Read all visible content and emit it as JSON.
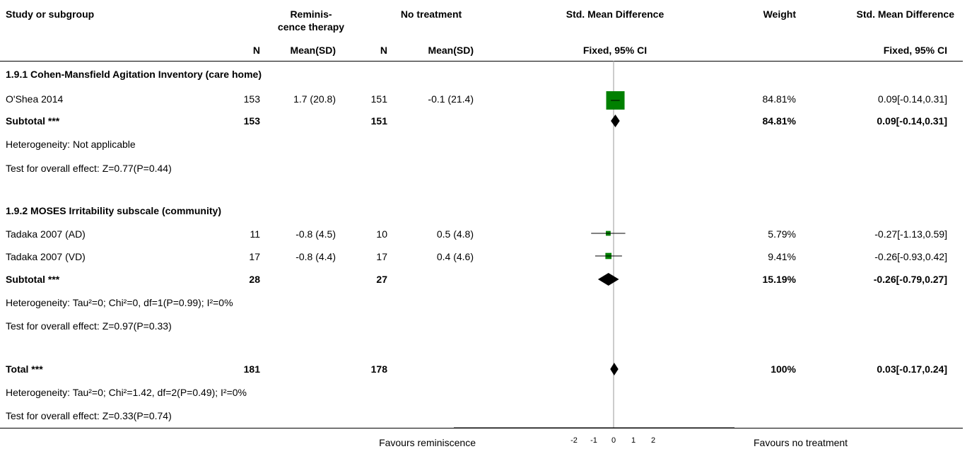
{
  "header": {
    "study": "Study or subgroup",
    "exp_group": "Reminis-",
    "exp_group2": "cence therapy",
    "ctrl_group": "No treatment",
    "smd": "Std. Mean Difference",
    "weight": "Weight",
    "smd2": "Std. Mean Difference",
    "n": "N",
    "mean_sd": "Mean(SD)",
    "method": "Fixed, 95% CI",
    "method2": "Fixed, 95% CI"
  },
  "groups": [
    {
      "title": "1.9.1 Cohen-Mansfield Agitation Inventory (care home)",
      "studies": [
        {
          "name": "O'Shea 2014",
          "n1": "153",
          "msd1": "1.7 (20.8)",
          "n2": "151",
          "msd2": "-0.1 (21.4)",
          "weight": "84.81%",
          "ci_text": "0.09[-0.14,0.31]"
        }
      ],
      "subtotal": {
        "label": "Subtotal ***",
        "n1": "153",
        "n2": "151",
        "weight": "84.81%",
        "ci_text": "0.09[-0.14,0.31]"
      },
      "heterogeneity": "Heterogeneity: Not applicable",
      "overall": "Test for overall effect: Z=0.77(P=0.44)"
    },
    {
      "title": "1.9.2 MOSES Irritability subscale (community)",
      "studies": [
        {
          "name": "Tadaka 2007 (AD)",
          "n1": "11",
          "msd1": "-0.8 (4.5)",
          "n2": "10",
          "msd2": "0.5 (4.8)",
          "weight": "5.79%",
          "ci_text": "-0.27[-1.13,0.59]"
        },
        {
          "name": "Tadaka 2007 (VD)",
          "n1": "17",
          "msd1": "-0.8 (4.4)",
          "n2": "17",
          "msd2": "0.4 (4.6)",
          "weight": "9.41%",
          "ci_text": "-0.26[-0.93,0.42]"
        }
      ],
      "subtotal": {
        "label": "Subtotal ***",
        "n1": "28",
        "n2": "27",
        "weight": "15.19%",
        "ci_text": "-0.26[-0.79,0.27]"
      },
      "heterogeneity": "Heterogeneity: Tau²=0; Chi²=0, df=1(P=0.99); I²=0%",
      "overall": "Test for overall effect: Z=0.97(P=0.33)"
    }
  ],
  "total": {
    "label": "Total ***",
    "n1": "181",
    "n2": "178",
    "weight": "100%",
    "ci_text": "0.03[-0.17,0.24]",
    "heterogeneity": "Heterogeneity: Tau²=0; Chi²=1.42, df=2(P=0.49); I²=0%",
    "overall": "Test for overall effect: Z=0.33(P=0.74)"
  },
  "footer": {
    "favours_left": "Favours reminiscence",
    "favours_right": "Favours no treatment"
  },
  "chart_data": {
    "type": "forest",
    "xlim": [
      -2,
      2
    ],
    "ticks": [
      "-2",
      "-1",
      "0",
      "1",
      "2"
    ],
    "tick_values": [
      -2,
      -1,
      0,
      1,
      2
    ],
    "study_color": "#008000",
    "studies": [
      {
        "name": "O'Shea 2014",
        "est": 0.09,
        "lo": -0.14,
        "hi": 0.31,
        "weight": 84.81
      },
      {
        "name": "Tadaka 2007 (AD)",
        "est": -0.27,
        "lo": -1.13,
        "hi": 0.59,
        "weight": 5.79
      },
      {
        "name": "Tadaka 2007 (VD)",
        "est": -0.26,
        "lo": -0.93,
        "hi": 0.42,
        "weight": 9.41
      }
    ],
    "diamonds": [
      {
        "name": "subtotal-1",
        "est": 0.09,
        "lo": -0.14,
        "hi": 0.31
      },
      {
        "name": "subtotal-2",
        "est": -0.26,
        "lo": -0.79,
        "hi": 0.27
      },
      {
        "name": "total",
        "est": 0.03,
        "lo": -0.17,
        "hi": 0.24
      }
    ]
  }
}
